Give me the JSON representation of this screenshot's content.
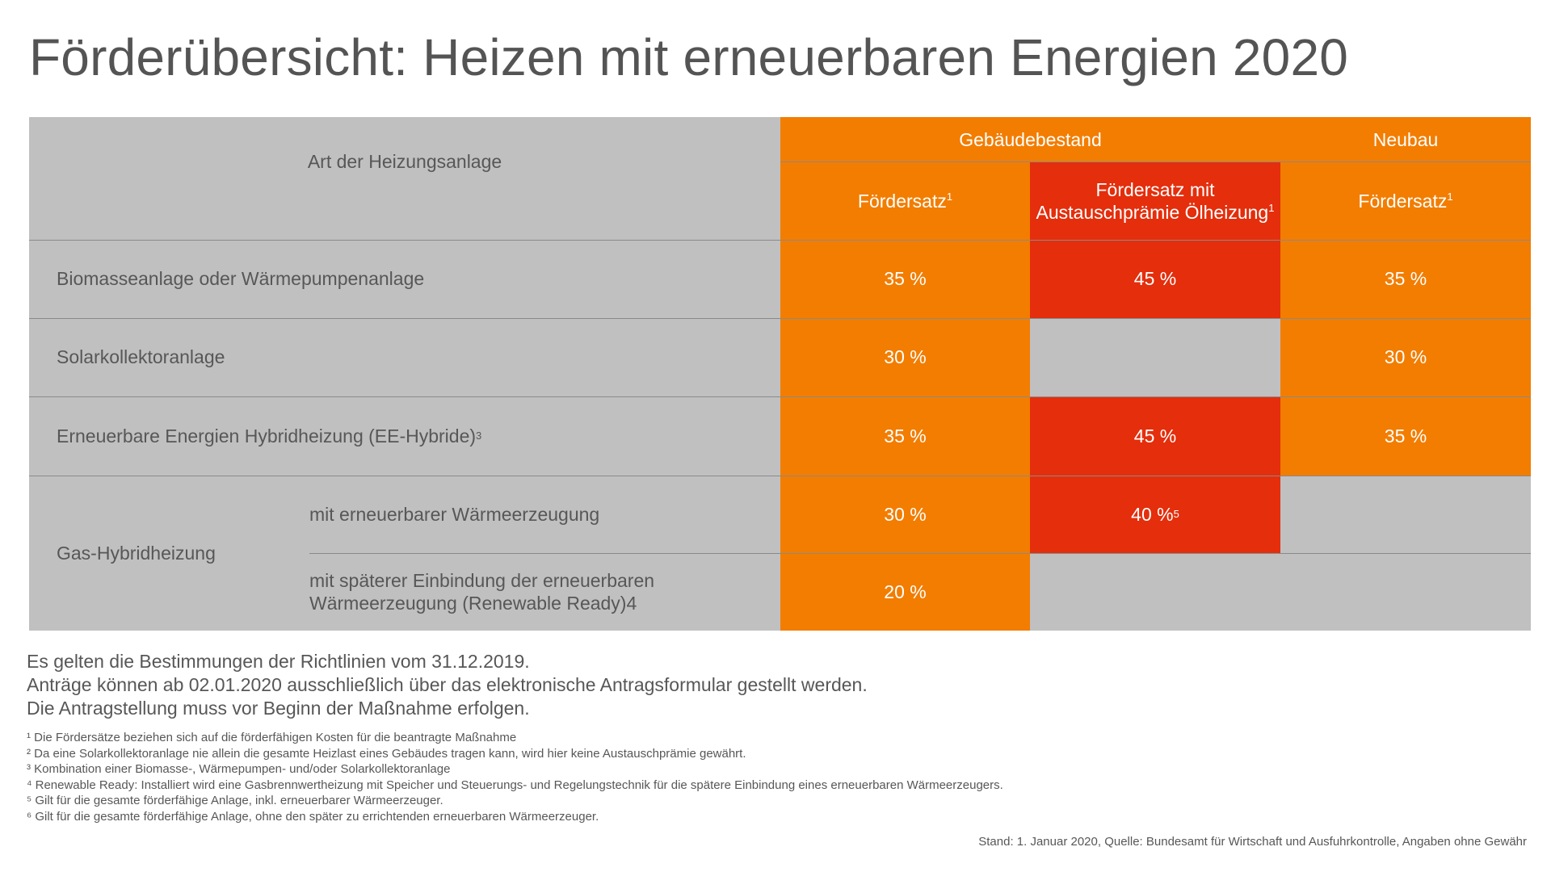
{
  "title": "Förderübersicht: Heizen mit erneuerbaren Energien 2020",
  "table": {
    "col_type_header": "Art der Heizungsanlage",
    "group_existing": "Gebäudebestand",
    "group_new": "Neubau",
    "col_rate": "Fördersatz",
    "col_rate_sup": "1",
    "col_rate_bonus_line1": "Fördersatz mit",
    "col_rate_bonus_line2": "Austauschprämie Ölheizung",
    "col_rate_bonus_sup": "1",
    "col_rate_new": "Fördersatz",
    "col_rate_new_sup": "1",
    "rows": [
      {
        "label": "Biomasseanlage oder Wärmepumpenanlage",
        "rate": "35 %",
        "bonus": "45 %",
        "new": "35 %"
      },
      {
        "label": "Solarkollektoranlage",
        "rate": "30 %",
        "bonus": "",
        "new": "30 %"
      },
      {
        "label": "Erneuerbare Energien Hybridheizung (EE-Hybride)",
        "label_sup": "3",
        "rate": "35 %",
        "bonus": "45 %",
        "new": "35 %"
      }
    ],
    "gas_hybrid": {
      "label": "Gas-Hybridheizung",
      "sub1": "mit erneuerbarer Wärmeerzeugung",
      "sub1_rate": "30 %",
      "sub1_bonus": "40 %",
      "sub1_bonus_sup": "5",
      "sub2_line1": "mit späterer Einbindung der erneuerbaren",
      "sub2_line2": "Wärmeerzeugung (Renewable Ready)4",
      "sub2_rate": "20 %"
    }
  },
  "notes": [
    "Es gelten die Bestimmungen der Richtlinien vom 31.12.2019.",
    "Anträge können ab 02.01.2020 ausschließlich über das elektronische Antragsformular gestellt werden.",
    "Die Antragstellung muss vor Beginn der Maßnahme erfolgen."
  ],
  "footnotes": [
    "¹ Die Fördersätze beziehen sich auf die förderfähigen Kosten für die beantragte Maßnahme",
    "² Da eine Solarkollektoranlage nie allein die gesamte Heizlast eines Gebäudes tragen kann, wird hier keine Austauschprämie gewährt.",
    "³ Kombination einer Biomasse-, Wärmepumpen- und/oder Solarkollektoranlage",
    "⁴ Renewable Ready: Installiert wird eine Gasbrennwertheizung mit Speicher und Steuerungs- und Regelungstechnik für die spätere Einbindung eines erneuerbaren Wärmeerzeugers.",
    "⁵ Gilt für die gesamte förderfähige Anlage, inkl. erneuerbarer Wärmeerzeuger.",
    "⁶ Gilt für die gesamte förderfähige Anlage, ohne den später zu errichtenden erneuerbaren Wärmeerzeuger."
  ],
  "source": "Stand: 1. Januar 2020, Quelle: Bundesamt für Wirtschaft und Ausfuhrkontrolle, Angaben ohne Gewähr",
  "colors": {
    "orange": "#f27d00",
    "red": "#e42e0c",
    "gray": "#c0c0c0",
    "text": "#575757"
  }
}
